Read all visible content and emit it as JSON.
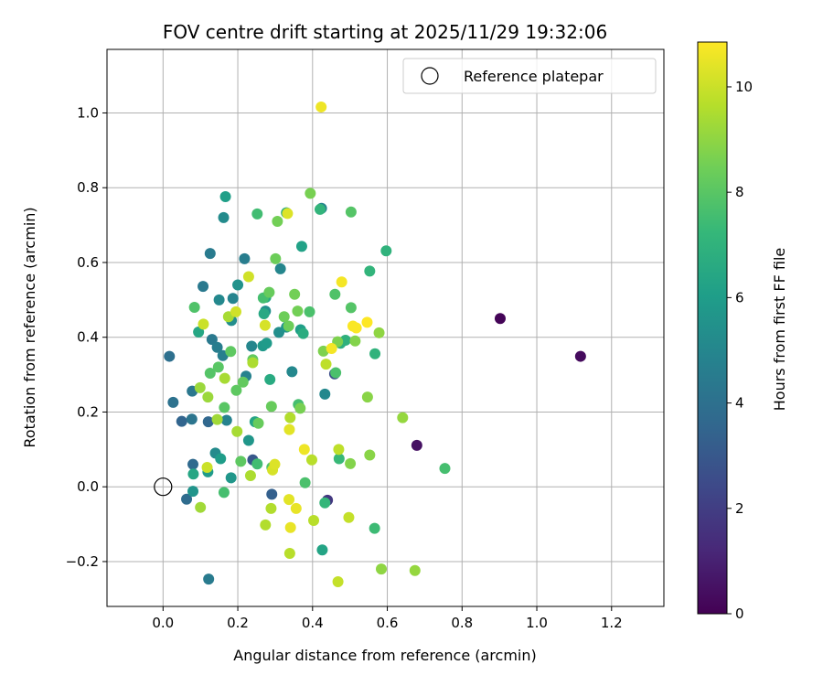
{
  "chart_data": {
    "type": "scatter",
    "title": "FOV centre drift starting at 2025/11/29 19:32:06",
    "xlabel": "Angular distance from reference (arcmin)",
    "ylabel": "Rotation from reference (arcmin)",
    "xlim": [
      -0.15,
      1.34
    ],
    "ylim": [
      -0.32,
      1.17
    ],
    "xticks": [
      0.0,
      0.2,
      0.4,
      0.6,
      0.8,
      1.0,
      1.2
    ],
    "xtick_labels": [
      "0.0",
      "0.2",
      "0.4",
      "0.6",
      "0.8",
      "1.0",
      "1.2"
    ],
    "yticks": [
      -0.2,
      0.0,
      0.2,
      0.4,
      0.6,
      0.8,
      1.0
    ],
    "ytick_labels": [
      "−0.2",
      "0.0",
      "0.2",
      "0.4",
      "0.6",
      "0.8",
      "1.0"
    ],
    "grid": true,
    "legend": {
      "position": "top-right",
      "entries": [
        "Reference platepar"
      ]
    },
    "reference_point": {
      "x": 0.0,
      "y": 0.0,
      "label": "Reference platepar"
    },
    "colorbar": {
      "label": "Hours from first FF file",
      "range": [
        0,
        10.85
      ],
      "ticks": [
        0,
        2,
        4,
        6,
        8,
        10
      ],
      "tick_labels": [
        "0",
        "2",
        "4",
        "6",
        "8",
        "10"
      ],
      "colormap": "viridis"
    },
    "points": [
      {
        "x": 0.902,
        "y": 0.45,
        "h": 0.1
      },
      {
        "x": 1.117,
        "y": 0.349,
        "h": 0.3
      },
      {
        "x": 0.679,
        "y": 0.111,
        "h": 0.5
      },
      {
        "x": 0.44,
        "y": -0.036,
        "h": 1.8
      },
      {
        "x": 0.459,
        "y": 0.302,
        "h": 2.6
      },
      {
        "x": 0.24,
        "y": 0.072,
        "h": 3.0
      },
      {
        "x": 0.291,
        "y": -0.02,
        "h": 3.3
      },
      {
        "x": 0.05,
        "y": 0.175,
        "h": 3.5
      },
      {
        "x": 0.121,
        "y": 0.174,
        "h": 3.6
      },
      {
        "x": 0.08,
        "y": 0.06,
        "h": 3.7
      },
      {
        "x": 0.063,
        "y": -0.033,
        "h": 3.8
      },
      {
        "x": 0.017,
        "y": 0.349,
        "h": 4.0
      },
      {
        "x": 0.027,
        "y": 0.226,
        "h": 4.1
      },
      {
        "x": 0.077,
        "y": 0.181,
        "h": 4.2
      },
      {
        "x": 0.078,
        "y": 0.256,
        "h": 4.3
      },
      {
        "x": 0.107,
        "y": 0.536,
        "h": 4.4
      },
      {
        "x": 0.122,
        "y": -0.247,
        "h": 4.5
      },
      {
        "x": 0.126,
        "y": 0.624,
        "h": 4.5
      },
      {
        "x": 0.131,
        "y": 0.394,
        "h": 4.4
      },
      {
        "x": 0.145,
        "y": 0.373,
        "h": 4.6
      },
      {
        "x": 0.16,
        "y": 0.351,
        "h": 4.7
      },
      {
        "x": 0.17,
        "y": 0.178,
        "h": 4.8
      },
      {
        "x": 0.187,
        "y": 0.504,
        "h": 4.9
      },
      {
        "x": 0.218,
        "y": 0.61,
        "h": 4.6
      },
      {
        "x": 0.222,
        "y": 0.296,
        "h": 4.8
      },
      {
        "x": 0.237,
        "y": 0.376,
        "h": 5.0
      },
      {
        "x": 0.314,
        "y": 0.583,
        "h": 5.0
      },
      {
        "x": 0.345,
        "y": 0.308,
        "h": 5.1
      },
      {
        "x": 0.424,
        "y": 0.745,
        "h": 5.0
      },
      {
        "x": 0.433,
        "y": 0.248,
        "h": 5.1
      },
      {
        "x": 0.15,
        "y": 0.5,
        "h": 5.1
      },
      {
        "x": 0.14,
        "y": 0.09,
        "h": 5.2
      },
      {
        "x": 0.162,
        "y": 0.72,
        "h": 5.2
      },
      {
        "x": 0.183,
        "y": 0.445,
        "h": 5.3
      },
      {
        "x": 0.2,
        "y": 0.54,
        "h": 5.5
      },
      {
        "x": 0.274,
        "y": 0.47,
        "h": 5.4
      },
      {
        "x": 0.31,
        "y": 0.413,
        "h": 5.4
      },
      {
        "x": 0.33,
        "y": 0.427,
        "h": 5.6
      },
      {
        "x": 0.08,
        "y": -0.012,
        "h": 5.6
      },
      {
        "x": 0.182,
        "y": 0.024,
        "h": 5.7
      },
      {
        "x": 0.229,
        "y": 0.124,
        "h": 5.7
      },
      {
        "x": 0.267,
        "y": 0.377,
        "h": 5.8
      },
      {
        "x": 0.277,
        "y": 0.384,
        "h": 5.9
      },
      {
        "x": 0.12,
        "y": 0.04,
        "h": 5.9
      },
      {
        "x": 0.154,
        "y": 0.075,
        "h": 6.0
      },
      {
        "x": 0.167,
        "y": 0.776,
        "h": 6.1
      },
      {
        "x": 0.368,
        "y": 0.42,
        "h": 6.1
      },
      {
        "x": 0.371,
        "y": 0.643,
        "h": 6.2
      },
      {
        "x": 0.246,
        "y": 0.174,
        "h": 6.3
      },
      {
        "x": 0.426,
        "y": -0.169,
        "h": 6.3
      },
      {
        "x": 0.081,
        "y": 0.034,
        "h": 6.4
      },
      {
        "x": 0.095,
        "y": 0.414,
        "h": 6.4
      },
      {
        "x": 0.27,
        "y": 0.463,
        "h": 6.5
      },
      {
        "x": 0.275,
        "y": 0.507,
        "h": 6.6
      },
      {
        "x": 0.286,
        "y": 0.287,
        "h": 6.6
      },
      {
        "x": 0.33,
        "y": 0.733,
        "h": 6.7
      },
      {
        "x": 0.375,
        "y": 0.41,
        "h": 6.7
      },
      {
        "x": 0.475,
        "y": 0.384,
        "h": 6.8
      },
      {
        "x": 0.488,
        "y": 0.392,
        "h": 6.9
      },
      {
        "x": 0.567,
        "y": 0.356,
        "h": 7.0
      },
      {
        "x": 0.597,
        "y": 0.631,
        "h": 7.0
      },
      {
        "x": 0.42,
        "y": 0.742,
        "h": 7.1
      },
      {
        "x": 0.553,
        "y": 0.577,
        "h": 7.1
      },
      {
        "x": 0.433,
        "y": -0.043,
        "h": 7.2
      },
      {
        "x": 0.471,
        "y": 0.075,
        "h": 7.3
      },
      {
        "x": 0.566,
        "y": -0.111,
        "h": 7.4
      },
      {
        "x": 0.754,
        "y": 0.049,
        "h": 7.6
      },
      {
        "x": 0.163,
        "y": -0.015,
        "h": 7.6
      },
      {
        "x": 0.252,
        "y": 0.061,
        "h": 7.5
      },
      {
        "x": 0.252,
        "y": 0.73,
        "h": 7.5
      },
      {
        "x": 0.268,
        "y": 0.505,
        "h": 7.6
      },
      {
        "x": 0.291,
        "y": 0.052,
        "h": 7.8
      },
      {
        "x": 0.362,
        "y": 0.22,
        "h": 7.6
      },
      {
        "x": 0.38,
        "y": 0.011,
        "h": 7.7
      },
      {
        "x": 0.392,
        "y": 0.468,
        "h": 7.7
      },
      {
        "x": 0.46,
        "y": 0.515,
        "h": 7.8
      },
      {
        "x": 0.462,
        "y": 0.305,
        "h": 7.7
      },
      {
        "x": 0.503,
        "y": 0.479,
        "h": 7.9
      },
      {
        "x": 0.503,
        "y": 0.735,
        "h": 7.9
      },
      {
        "x": 0.084,
        "y": 0.48,
        "h": 7.8
      },
      {
        "x": 0.126,
        "y": 0.304,
        "h": 7.9
      },
      {
        "x": 0.148,
        "y": 0.32,
        "h": 8.0
      },
      {
        "x": 0.164,
        "y": 0.212,
        "h": 8.0
      },
      {
        "x": 0.181,
        "y": 0.362,
        "h": 8.1
      },
      {
        "x": 0.196,
        "y": 0.258,
        "h": 8.1
      },
      {
        "x": 0.208,
        "y": 0.068,
        "h": 8.1
      },
      {
        "x": 0.214,
        "y": 0.28,
        "h": 8.2
      },
      {
        "x": 0.24,
        "y": 0.34,
        "h": 8.2
      },
      {
        "x": 0.255,
        "y": 0.17,
        "h": 8.3
      },
      {
        "x": 0.284,
        "y": 0.52,
        "h": 8.3
      },
      {
        "x": 0.29,
        "y": 0.215,
        "h": 8.3
      },
      {
        "x": 0.301,
        "y": 0.61,
        "h": 8.4
      },
      {
        "x": 0.306,
        "y": 0.71,
        "h": 8.5
      },
      {
        "x": 0.324,
        "y": 0.455,
        "h": 8.4
      },
      {
        "x": 0.336,
        "y": 0.43,
        "h": 8.4
      },
      {
        "x": 0.352,
        "y": 0.515,
        "h": 8.5
      },
      {
        "x": 0.36,
        "y": 0.47,
        "h": 8.5
      },
      {
        "x": 0.367,
        "y": 0.21,
        "h": 8.6
      },
      {
        "x": 0.394,
        "y": 0.785,
        "h": 8.6
      },
      {
        "x": 0.429,
        "y": 0.363,
        "h": 8.7
      },
      {
        "x": 0.467,
        "y": 0.388,
        "h": 8.7
      },
      {
        "x": 0.501,
        "y": 0.062,
        "h": 8.8
      },
      {
        "x": 0.514,
        "y": 0.39,
        "h": 8.8
      },
      {
        "x": 0.547,
        "y": 0.24,
        "h": 8.9
      },
      {
        "x": 0.553,
        "y": 0.085,
        "h": 8.9
      },
      {
        "x": 0.578,
        "y": 0.412,
        "h": 9.0
      },
      {
        "x": 0.584,
        "y": -0.22,
        "h": 9.0
      },
      {
        "x": 0.641,
        "y": 0.185,
        "h": 9.1
      },
      {
        "x": 0.674,
        "y": -0.224,
        "h": 9.1
      },
      {
        "x": 0.12,
        "y": 0.24,
        "h": 9.2
      },
      {
        "x": 0.099,
        "y": 0.265,
        "h": 9.2
      },
      {
        "x": 0.1,
        "y": -0.055,
        "h": 9.3
      },
      {
        "x": 0.145,
        "y": 0.18,
        "h": 9.3
      },
      {
        "x": 0.165,
        "y": 0.29,
        "h": 9.4
      },
      {
        "x": 0.175,
        "y": 0.455,
        "h": 9.4
      },
      {
        "x": 0.198,
        "y": 0.148,
        "h": 9.4
      },
      {
        "x": 0.234,
        "y": 0.03,
        "h": 9.5
      },
      {
        "x": 0.24,
        "y": 0.332,
        "h": 9.5
      },
      {
        "x": 0.274,
        "y": -0.102,
        "h": 9.6
      },
      {
        "x": 0.289,
        "y": -0.058,
        "h": 9.6
      },
      {
        "x": 0.34,
        "y": 0.185,
        "h": 9.6
      },
      {
        "x": 0.339,
        "y": -0.178,
        "h": 9.7
      },
      {
        "x": 0.398,
        "y": 0.072,
        "h": 9.7
      },
      {
        "x": 0.403,
        "y": -0.09,
        "h": 9.7
      },
      {
        "x": 0.436,
        "y": 0.328,
        "h": 9.8
      },
      {
        "x": 0.47,
        "y": 0.1,
        "h": 9.8
      },
      {
        "x": 0.468,
        "y": -0.254,
        "h": 9.9
      },
      {
        "x": 0.497,
        "y": -0.082,
        "h": 9.9
      },
      {
        "x": 0.108,
        "y": 0.435,
        "h": 10.0
      },
      {
        "x": 0.118,
        "y": 0.052,
        "h": 10.0
      },
      {
        "x": 0.195,
        "y": 0.468,
        "h": 10.1
      },
      {
        "x": 0.229,
        "y": 0.562,
        "h": 10.1
      },
      {
        "x": 0.273,
        "y": 0.432,
        "h": 10.2
      },
      {
        "x": 0.293,
        "y": 0.045,
        "h": 10.2
      },
      {
        "x": 0.299,
        "y": 0.06,
        "h": 10.3
      },
      {
        "x": 0.333,
        "y": 0.731,
        "h": 10.3
      },
      {
        "x": 0.337,
        "y": -0.034,
        "h": 10.4
      },
      {
        "x": 0.338,
        "y": 0.153,
        "h": 10.4
      },
      {
        "x": 0.341,
        "y": -0.109,
        "h": 10.5
      },
      {
        "x": 0.356,
        "y": -0.058,
        "h": 10.5
      },
      {
        "x": 0.378,
        "y": 0.1,
        "h": 10.6
      },
      {
        "x": 0.423,
        "y": 1.016,
        "h": 10.6
      },
      {
        "x": 0.451,
        "y": 0.37,
        "h": 10.7
      },
      {
        "x": 0.478,
        "y": 0.548,
        "h": 10.7
      },
      {
        "x": 0.508,
        "y": 0.43,
        "h": 10.8
      },
      {
        "x": 0.517,
        "y": 0.425,
        "h": 10.8
      },
      {
        "x": 0.546,
        "y": 0.44,
        "h": 10.85
      }
    ]
  }
}
